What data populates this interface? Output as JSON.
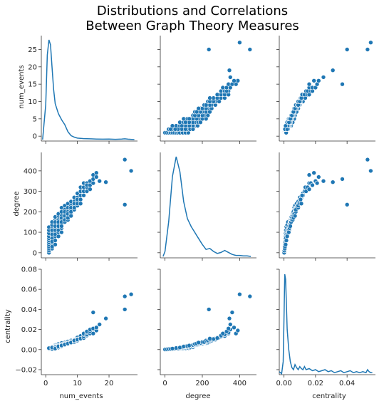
{
  "chart_data": {
    "type": "scatter",
    "kind": "pairplot",
    "title_lines": [
      "Distributions and Correlations",
      "Between Graph Theory Measures"
    ],
    "variables": [
      "num_events",
      "degree",
      "centrality"
    ],
    "colors": {
      "points": "#1f77b4",
      "line": "#1f77b4"
    },
    "axes": {
      "num_events": {
        "range": [
          -1.4,
          29
        ],
        "ticks": [
          0,
          5,
          10,
          15,
          20,
          25
        ],
        "tick_labels": [
          "0",
          "5",
          "10",
          "15",
          "20",
          "25"
        ],
        "x_ticks": [
          0,
          10,
          20
        ],
        "x_tick_labels": [
          "0",
          "10",
          "20"
        ]
      },
      "degree": {
        "range": [
          -25,
          490
        ],
        "ticks": [
          0,
          100,
          200,
          300,
          400
        ],
        "tick_labels": [
          "0",
          "100",
          "200",
          "300",
          "400"
        ],
        "x_ticks": [
          0,
          200,
          400
        ],
        "x_tick_labels": [
          "0",
          "200",
          "400"
        ]
      },
      "centrality": {
        "range": [
          -0.025,
          0.08
        ],
        "ticks": [
          -0.02,
          0.0,
          0.02,
          0.04,
          0.06,
          0.08
        ],
        "tick_labels": [
          "−0.02",
          "0.00",
          "0.02",
          "0.04",
          "0.06",
          "0.08"
        ],
        "x_range": [
          -0.003,
          0.058
        ],
        "x_ticks": [
          0.0,
          0.02,
          0.04
        ],
        "x_tick_labels": [
          "0.00",
          "0.02",
          "0.04"
        ]
      }
    },
    "points": {
      "num_events": [
        1,
        1,
        1,
        1,
        1,
        1,
        1,
        1,
        1,
        1,
        1,
        1,
        2,
        2,
        2,
        2,
        2,
        2,
        2,
        2,
        2,
        2,
        2,
        2,
        2,
        3,
        3,
        3,
        3,
        3,
        3,
        3,
        3,
        3,
        3,
        3,
        3,
        4,
        4,
        4,
        4,
        4,
        4,
        4,
        4,
        4,
        4,
        5,
        5,
        5,
        5,
        5,
        5,
        5,
        5,
        5,
        5,
        6,
        6,
        6,
        6,
        6,
        6,
        6,
        6,
        7,
        7,
        7,
        7,
        7,
        7,
        7,
        8,
        8,
        8,
        8,
        8,
        8,
        8,
        9,
        9,
        9,
        9,
        9,
        9,
        10,
        10,
        10,
        10,
        10,
        10,
        11,
        11,
        11,
        11,
        11,
        12,
        12,
        12,
        12,
        13,
        13,
        13,
        13,
        14,
        14,
        14,
        15,
        15,
        15,
        16,
        16,
        17,
        19,
        25,
        25,
        27
      ],
      "degree": [
        0,
        10,
        20,
        30,
        40,
        50,
        60,
        70,
        80,
        95,
        110,
        125,
        20,
        40,
        60,
        80,
        100,
        120,
        135,
        150,
        90,
        70,
        55,
        30,
        110,
        60,
        80,
        100,
        120,
        140,
        160,
        175,
        150,
        130,
        110,
        90,
        40,
        80,
        100,
        120,
        140,
        160,
        180,
        190,
        150,
        130,
        110,
        100,
        120,
        140,
        160,
        180,
        200,
        220,
        170,
        150,
        130,
        150,
        170,
        190,
        210,
        230,
        200,
        180,
        160,
        160,
        180,
        200,
        220,
        240,
        190,
        170,
        190,
        210,
        230,
        250,
        220,
        200,
        180,
        210,
        230,
        250,
        270,
        240,
        220,
        230,
        250,
        270,
        290,
        260,
        240,
        260,
        280,
        300,
        320,
        240,
        280,
        300,
        320,
        340,
        300,
        320,
        340,
        330,
        310,
        330,
        350,
        340,
        360,
        380,
        390,
        370,
        350,
        345,
        235,
        455,
        400
      ],
      "centrality": [
        0.0001,
        0.0002,
        0.0003,
        0.0004,
        0.0005,
        0.0006,
        0.0007,
        0.0008,
        0.0009,
        0.001,
        0.0012,
        0.0014,
        0.0005,
        0.0008,
        0.001,
        0.0012,
        0.0015,
        0.0018,
        0.002,
        0.0025,
        0.0015,
        0.0012,
        0.001,
        0.0006,
        0.002,
        0.0015,
        0.002,
        0.0025,
        0.003,
        0.0035,
        0.004,
        0.0045,
        0.0038,
        0.0032,
        0.0028,
        0.0022,
        0.001,
        0.002,
        0.003,
        0.0035,
        0.004,
        0.0045,
        0.005,
        0.0055,
        0.0042,
        0.0038,
        0.0032,
        0.003,
        0.0035,
        0.004,
        0.005,
        0.0055,
        0.006,
        0.0065,
        0.005,
        0.0045,
        0.004,
        0.0045,
        0.005,
        0.006,
        0.0065,
        0.007,
        0.006,
        0.0055,
        0.005,
        0.0055,
        0.006,
        0.007,
        0.0075,
        0.008,
        0.0065,
        0.006,
        0.0065,
        0.007,
        0.0085,
        0.009,
        0.008,
        0.0075,
        0.007,
        0.0075,
        0.0085,
        0.009,
        0.01,
        0.0095,
        0.009,
        0.009,
        0.01,
        0.011,
        0.012,
        0.0105,
        0.01,
        0.0105,
        0.012,
        0.013,
        0.0135,
        0.011,
        0.0115,
        0.013,
        0.015,
        0.016,
        0.014,
        0.015,
        0.017,
        0.018,
        0.016,
        0.018,
        0.02,
        0.021,
        0.037,
        0.016,
        0.019,
        0.022,
        0.025,
        0.031,
        0.04,
        0.053,
        0.055
      ]
    },
    "kde": {
      "num_events": {
        "x": [
          -1,
          0,
          0.5,
          1,
          1.5,
          2,
          2.5,
          3,
          4,
          5,
          6,
          7,
          8,
          9,
          10,
          11,
          12,
          14,
          16,
          18,
          20,
          22,
          24,
          25,
          26,
          28
        ],
        "density": [
          0.0,
          0.35,
          0.85,
          1.0,
          0.95,
          0.72,
          0.5,
          0.36,
          0.26,
          0.2,
          0.15,
          0.08,
          0.04,
          0.025,
          0.015,
          0.012,
          0.01,
          0.008,
          0.006,
          0.004,
          0.006,
          0.003,
          0.005,
          0.008,
          0.004,
          0.0
        ]
      },
      "degree": {
        "x": [
          -10,
          0,
          20,
          40,
          60,
          80,
          100,
          120,
          140,
          160,
          180,
          200,
          220,
          240,
          260,
          280,
          300,
          320,
          340,
          360,
          380,
          400,
          420,
          440,
          460
        ],
        "density": [
          0.0,
          0.05,
          0.35,
          0.8,
          1.0,
          0.85,
          0.55,
          0.38,
          0.3,
          0.24,
          0.18,
          0.12,
          0.07,
          0.08,
          0.05,
          0.03,
          0.04,
          0.06,
          0.04,
          0.02,
          0.01,
          0.01,
          0.005,
          0.005,
          0.0
        ]
      },
      "centrality": {
        "x": [
          -0.003,
          -0.0015,
          -0.0005,
          0.0,
          0.0005,
          0.001,
          0.0015,
          0.002,
          0.003,
          0.004,
          0.005,
          0.006,
          0.007,
          0.008,
          0.009,
          0.01,
          0.011,
          0.012,
          0.013,
          0.014,
          0.016,
          0.018,
          0.02,
          0.022,
          0.024,
          0.026,
          0.028,
          0.03,
          0.032,
          0.034,
          0.036,
          0.038,
          0.04,
          0.042,
          0.044,
          0.046,
          0.048,
          0.05,
          0.052,
          0.053,
          0.054,
          0.055,
          0.056
        ],
        "value": [
          -0.022,
          -0.024,
          -0.012,
          0.03,
          0.075,
          0.07,
          0.045,
          0.02,
          0.0,
          -0.012,
          -0.018,
          -0.02,
          -0.015,
          -0.018,
          -0.02,
          -0.017,
          -0.019,
          -0.02,
          -0.017,
          -0.02,
          -0.019,
          -0.021,
          -0.02,
          -0.022,
          -0.021,
          -0.02,
          -0.022,
          -0.021,
          -0.023,
          -0.022,
          -0.021,
          -0.023,
          -0.022,
          -0.021,
          -0.023,
          -0.022,
          -0.023,
          -0.022,
          -0.023,
          -0.02,
          -0.022,
          -0.023,
          -0.023
        ]
      }
    }
  }
}
